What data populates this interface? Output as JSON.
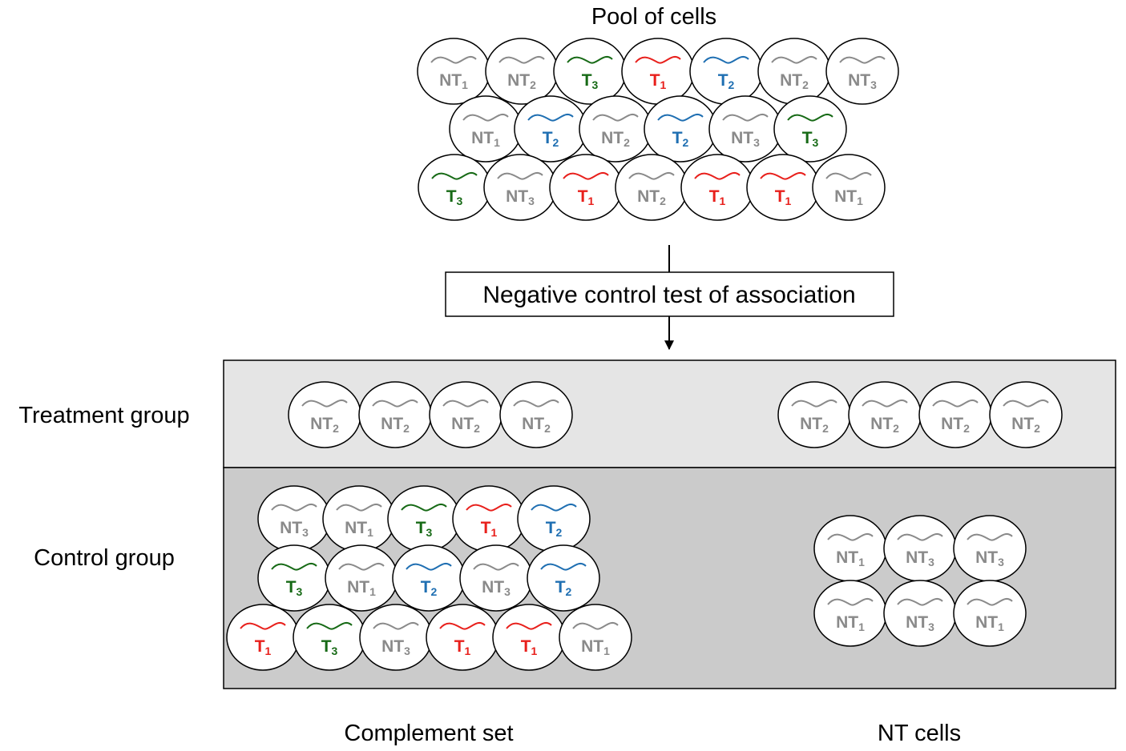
{
  "title": "Pool of cells",
  "step_label": "Negative control test of association",
  "group_labels": {
    "treatment": "Treatment group",
    "control": "Control group"
  },
  "column_labels": {
    "complement": "Complement set",
    "nt": "NT cells"
  },
  "colors": {
    "T1": "#e8201c",
    "T2": "#1f6fb2",
    "T3": "#176a16",
    "NT": "#8a8a8a",
    "treatment_bg": "#e5e5e5",
    "control_bg": "#cbcbcb"
  },
  "icon_name": "transcript-wave-icon",
  "cells": {
    "pool": [
      [
        "NT1",
        "NT2",
        "T3",
        "T1",
        "T2",
        "NT2",
        "NT3"
      ],
      [
        "NT1",
        "T2",
        "NT2",
        "T2",
        "NT3",
        "T3"
      ],
      [
        "T3",
        "NT3",
        "T1",
        "NT2",
        "T1",
        "T1",
        "NT1"
      ]
    ],
    "treatment_complement": [
      [
        "NT2",
        "NT2",
        "NT2",
        "NT2"
      ]
    ],
    "treatment_nt": [
      [
        "NT2",
        "NT2",
        "NT2",
        "NT2"
      ]
    ],
    "control_complement": [
      [
        "NT3",
        "NT1",
        "T3",
        "T1",
        "T2"
      ],
      [
        "T3",
        "NT1",
        "T2",
        "NT3",
        "T2"
      ],
      [
        "T1",
        "T3",
        "NT3",
        "T1",
        "T1",
        "NT1"
      ]
    ],
    "control_nt": [
      [
        "NT1",
        "NT3",
        "NT3"
      ],
      [
        "NT1",
        "NT3",
        "NT1"
      ]
    ]
  }
}
